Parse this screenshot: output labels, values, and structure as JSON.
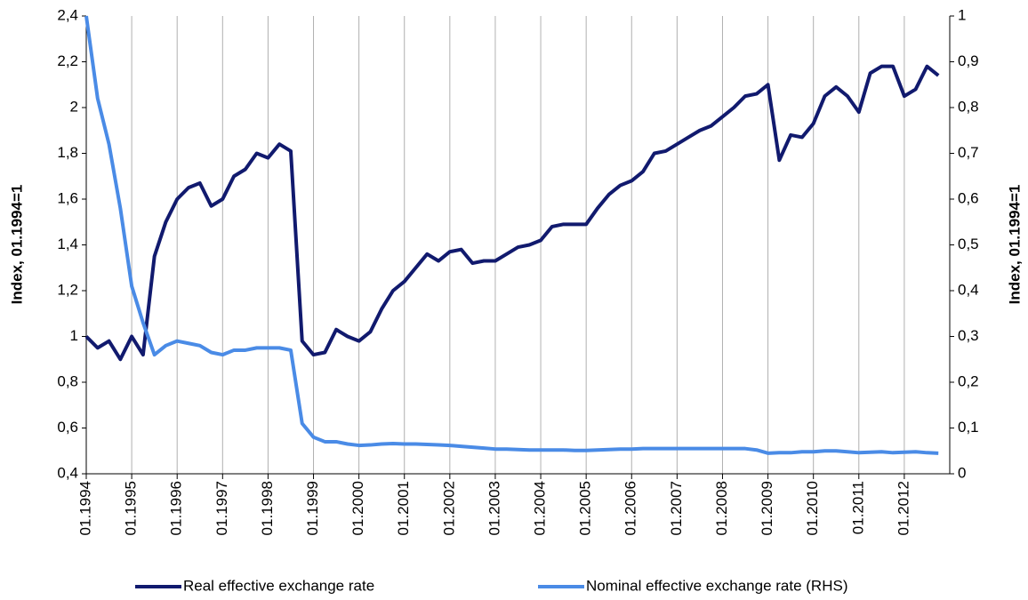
{
  "chart_data": {
    "type": "line",
    "categories": [
      "01.1994",
      null,
      null,
      null,
      "01.1995",
      null,
      null,
      null,
      "01.1996",
      null,
      null,
      null,
      "01.1997",
      null,
      null,
      null,
      "01.1998",
      null,
      null,
      null,
      "01.1999",
      null,
      null,
      null,
      "01.2000",
      null,
      null,
      null,
      "01.2001",
      null,
      null,
      null,
      "01.2002",
      null,
      null,
      null,
      "01.2003",
      null,
      null,
      null,
      "01.2004",
      null,
      null,
      null,
      "01.2005",
      null,
      null,
      null,
      "01.2006",
      null,
      null,
      null,
      "01.2007",
      null,
      null,
      null,
      "01.2008",
      null,
      null,
      null,
      "01.2009",
      null,
      null,
      null,
      "01.2010",
      null,
      null,
      null,
      "01.2011",
      null,
      null,
      null,
      "01.2012",
      null,
      null,
      null
    ],
    "y_label": "Index, 01.1994=1",
    "y2_label": "Index, 01.1994=1",
    "ylim": [
      0.4,
      2.4
    ],
    "yticks": [
      {
        "value": 0.4,
        "label": "0,4"
      },
      {
        "value": 0.6,
        "label": "0,6"
      },
      {
        "value": 0.8,
        "label": "0,8"
      },
      1,
      {
        "value": 1.2,
        "label": "1,2"
      },
      {
        "value": 1.4,
        "label": "1,4"
      },
      {
        "value": 1.6,
        "label": "1,6"
      },
      {
        "value": 1.8,
        "label": "1,8"
      },
      2,
      {
        "value": 2.2,
        "label": "2,2"
      },
      {
        "value": 2.4,
        "label": "2,4"
      }
    ],
    "y2lim": [
      0,
      1
    ],
    "y2ticks": [
      0,
      {
        "value": 0.1,
        "label": "0,1"
      },
      {
        "value": 0.2,
        "label": "0,2"
      },
      {
        "value": 0.3,
        "label": "0,3"
      },
      {
        "value": 0.4,
        "label": "0,4"
      },
      {
        "value": 0.5,
        "label": "0,5"
      },
      {
        "value": 0.6,
        "label": "0,6"
      },
      {
        "value": 0.7,
        "label": "0,7"
      },
      {
        "value": 0.8,
        "label": "0,8"
      },
      {
        "value": 0.9,
        "label": "0,9"
      },
      1
    ],
    "x_grid": true,
    "series": [
      {
        "name": "Real effective exchange rate",
        "color": "#111a6e",
        "values": [
          1.0,
          0.95,
          0.98,
          0.9,
          1.0,
          0.92,
          1.35,
          1.5,
          1.6,
          1.65,
          1.67,
          1.57,
          1.6,
          1.7,
          1.73,
          1.8,
          1.78,
          1.84,
          1.81,
          0.98,
          0.92,
          0.93,
          1.03,
          1.0,
          0.98,
          1.02,
          1.12,
          1.2,
          1.24,
          1.3,
          1.36,
          1.33,
          1.37,
          1.38,
          1.32,
          1.33,
          1.33,
          1.36,
          1.39,
          1.4,
          1.42,
          1.48,
          1.49,
          1.49,
          1.49,
          1.56,
          1.62,
          1.66,
          1.68,
          1.72,
          1.8,
          1.81,
          1.84,
          1.87,
          1.9,
          1.92,
          1.96,
          2.0,
          2.05,
          2.06,
          2.1,
          1.77,
          1.88,
          1.87,
          1.93,
          2.05,
          2.09,
          2.05,
          1.98,
          2.15,
          2.18,
          2.18,
          2.05,
          2.08,
          2.18,
          2.14
        ]
      },
      {
        "name": "Nominal effective exchange rate (RHS)",
        "color": "#4a8be6",
        "axis": "y2",
        "values": [
          1.0,
          0.82,
          0.72,
          0.58,
          0.41,
          0.33,
          0.26,
          0.28,
          0.29,
          0.285,
          0.28,
          0.265,
          0.26,
          0.27,
          0.27,
          0.275,
          0.275,
          0.275,
          0.27,
          0.11,
          0.08,
          0.07,
          0.07,
          0.065,
          0.062,
          0.063,
          0.065,
          0.066,
          0.065,
          0.065,
          0.064,
          0.063,
          0.062,
          0.06,
          0.058,
          0.056,
          0.054,
          0.054,
          0.053,
          0.052,
          0.052,
          0.052,
          0.052,
          0.051,
          0.051,
          0.052,
          0.053,
          0.054,
          0.054,
          0.055,
          0.055,
          0.055,
          0.055,
          0.055,
          0.055,
          0.055,
          0.055,
          0.055,
          0.055,
          0.052,
          0.045,
          0.046,
          0.046,
          0.048,
          0.048,
          0.05,
          0.05,
          0.048,
          0.046,
          0.047,
          0.048,
          0.046,
          0.047,
          0.048,
          0.046,
          0.045
        ]
      }
    ]
  }
}
